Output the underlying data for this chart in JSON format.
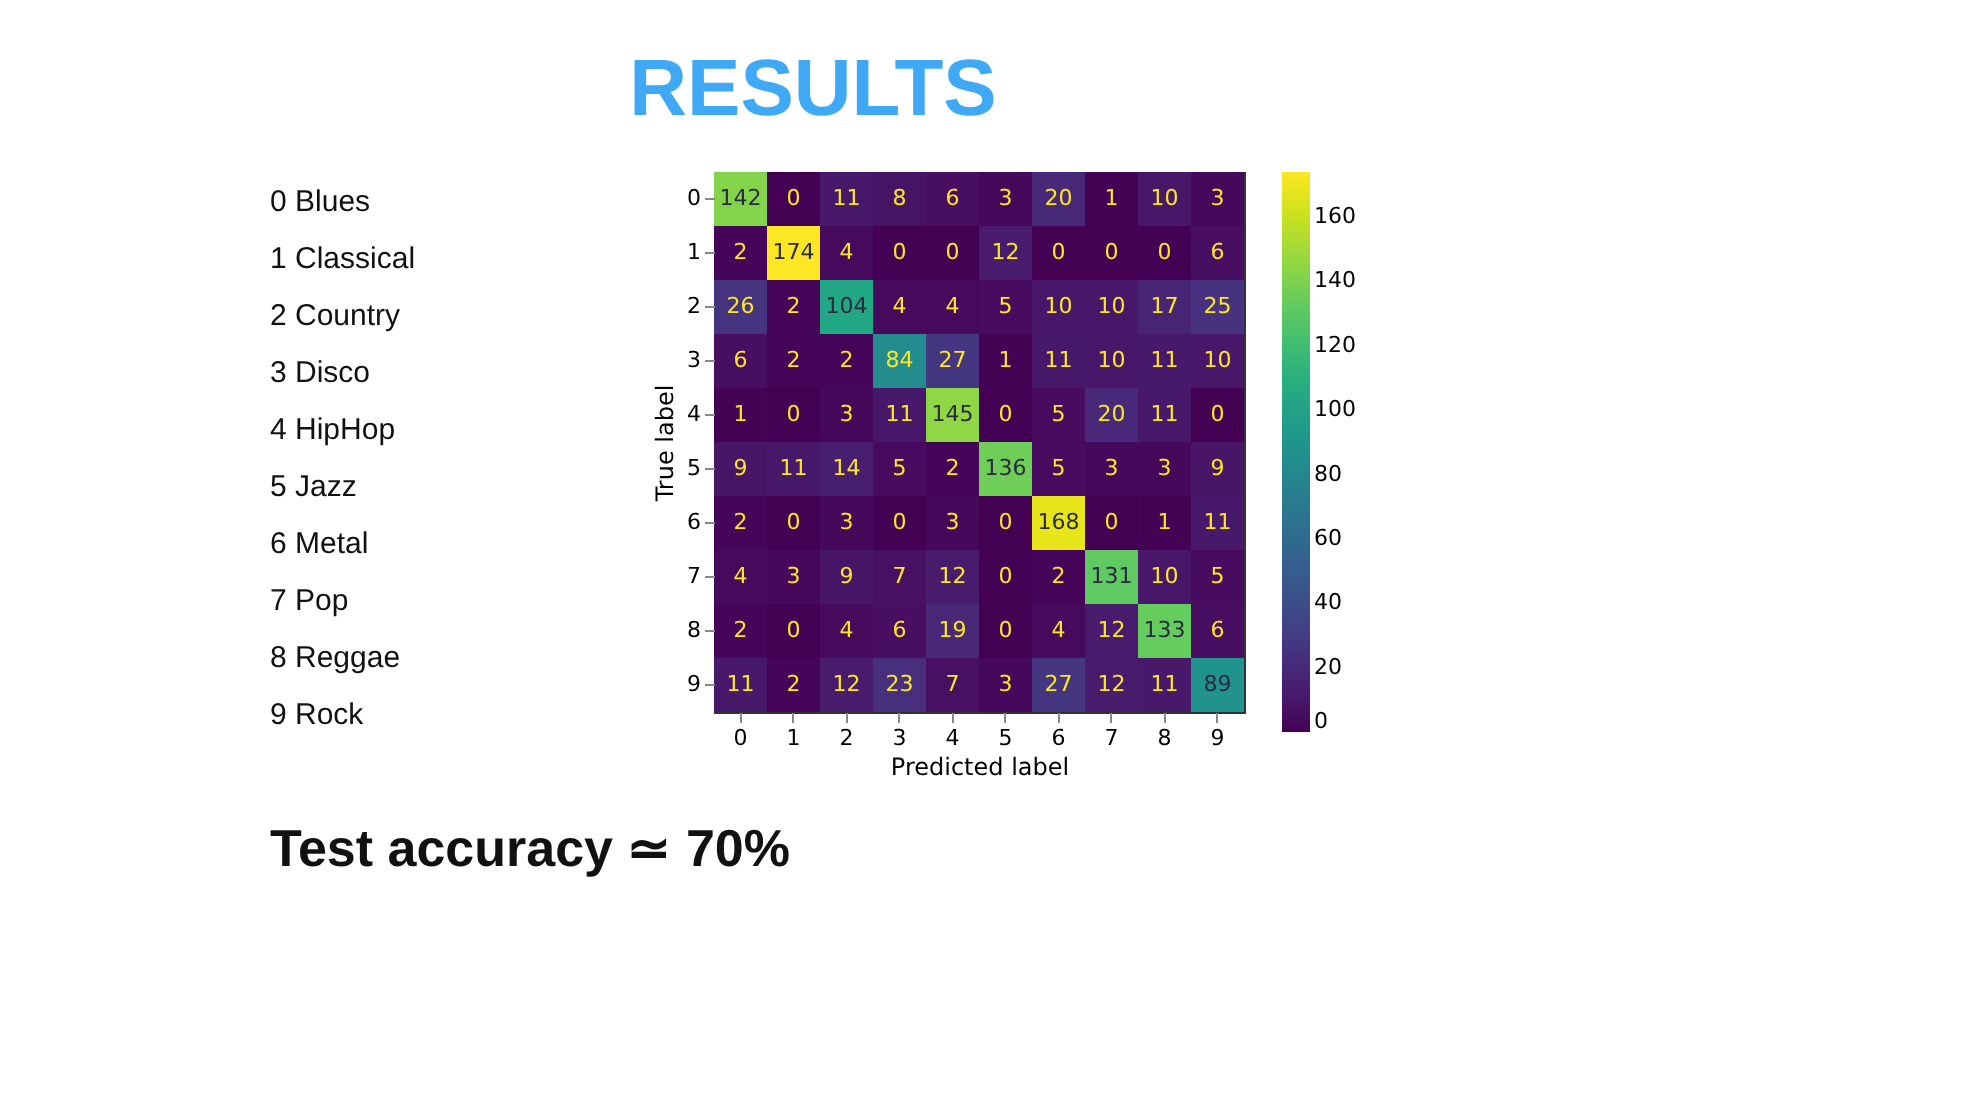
{
  "chart_data": {
    "type": "heatmap",
    "title": "RESULTS",
    "xlabel": "Predicted label",
    "ylabel": "True label",
    "categories": [
      "0",
      "1",
      "2",
      "3",
      "4",
      "5",
      "6",
      "7",
      "8",
      "9"
    ],
    "y_categories": [
      "0",
      "1",
      "2",
      "3",
      "4",
      "5",
      "6",
      "7",
      "8",
      "9"
    ],
    "cells": [
      [
        142,
        0,
        11,
        8,
        6,
        3,
        20,
        1,
        10,
        3
      ],
      [
        2,
        174,
        4,
        0,
        0,
        12,
        0,
        0,
        0,
        6
      ],
      [
        26,
        2,
        104,
        4,
        4,
        5,
        10,
        10,
        17,
        25
      ],
      [
        6,
        2,
        2,
        84,
        27,
        1,
        11,
        10,
        11,
        10
      ],
      [
        1,
        0,
        3,
        11,
        145,
        0,
        5,
        20,
        11,
        0
      ],
      [
        9,
        11,
        14,
        5,
        2,
        136,
        5,
        3,
        3,
        9
      ],
      [
        2,
        0,
        3,
        0,
        3,
        0,
        168,
        0,
        1,
        11
      ],
      [
        4,
        3,
        9,
        7,
        12,
        0,
        2,
        131,
        10,
        5
      ],
      [
        2,
        0,
        4,
        6,
        19,
        0,
        4,
        12,
        133,
        6
      ],
      [
        11,
        2,
        12,
        23,
        7,
        3,
        27,
        12,
        11,
        89
      ]
    ],
    "clim": [
      0,
      174
    ],
    "cticks": [
      0,
      20,
      40,
      60,
      80,
      100,
      120,
      140,
      160
    ],
    "data_labels": true,
    "annotations": [
      "0  Blues",
      "1  Classical",
      "2  Country",
      "3  Disco",
      "4  HipHop",
      "5  Jazz",
      "6  Metal",
      "7  Pop",
      "8  Reggae",
      "9  Rock",
      "Test accuracy ≃ 70%"
    ]
  }
}
